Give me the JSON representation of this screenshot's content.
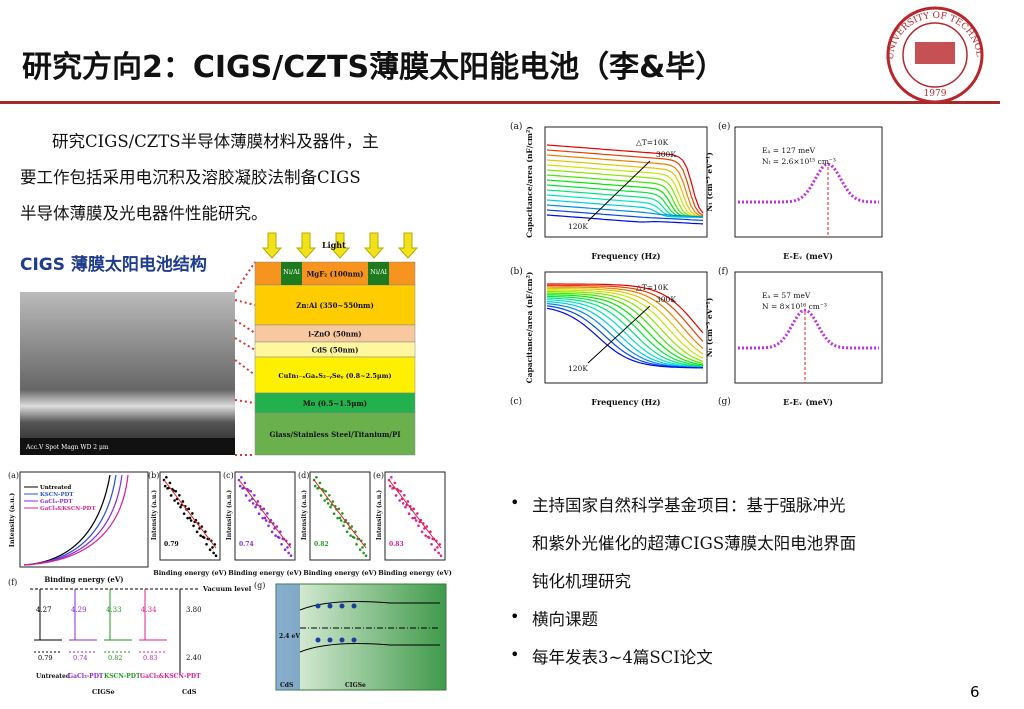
{
  "header": {
    "title": "研究方向2：CIGS/CZTS薄膜太阳能电池（李&毕）",
    "logo_text": "UNIVERSITY OF TECHNOLOGY",
    "logo_year": "1979"
  },
  "intro": {
    "lines": [
      "研究CIGS/CZTS半导体薄膜材料及器件，主",
      "要工作包括采用电沉积及溶胶凝胶法制备CIGS",
      "半导体薄膜及光电器件性能研究。"
    ]
  },
  "structure": {
    "heading": "CIGS 薄膜太阳电池结构",
    "light": "Light",
    "contact": "Ni/Al",
    "layers": [
      "MgF₂ (100nm)",
      "Zn:Al (350~550nm)",
      "i-ZnO (50nm)",
      "CdS (50nm)",
      "CuIn₁₋ₓGaₓS₂₋ᵧSeᵧ (0.8~2.5μm)",
      "Mo (0.5~1.5μm)",
      "Glass/Stainless Steel/Titanium/PI"
    ],
    "sem_caption": "Acc.V  Spot Magn   WD          2 μm"
  },
  "figures": {
    "a": {
      "label": "(a)",
      "x_label": "Frequency (Hz)",
      "y_label": "Capacitance/area (nF/cm²)",
      "dt": "△T=10K",
      "high": "300K",
      "low": "120K"
    },
    "b": {
      "label": "(b)",
      "x_label": "Frequency (Hz)",
      "y_label": "Capacitance/area (nF/cm²)",
      "dt": "△T=10K",
      "high": "300K",
      "low": "120K"
    },
    "c": {
      "label": "(c)"
    },
    "e": {
      "label": "(e)",
      "x_label": "E-Eᵥ (meV)",
      "y_label": "Nₜ (cm⁻³ eV⁻¹)",
      "ea": "Eₐ = 127 meV",
      "nt": "Nₜ = 2.6×10¹⁵ cm⁻³"
    },
    "f": {
      "label": "(f)",
      "x_label": "E-Eᵥ (meV)",
      "y_label": "Nₜ (cm⁻³ eV⁻¹)",
      "ea": "Eₐ = 57 meV",
      "nt": "N = 8×10¹⁶ cm⁻³"
    },
    "g": {
      "label": "(g)"
    }
  },
  "xps": {
    "panels": [
      "(a)",
      "(b)",
      "(c)",
      "(d)",
      "(e)"
    ],
    "legend": [
      "Untreated",
      "KSCN-PDT",
      "GaCl₃-PDT",
      "GaCl₃&KSCN-PDT"
    ],
    "x_label": "Binding energy (eV)",
    "y_label": "Intensity (a.u.)",
    "values": [
      "0.79",
      "0.74",
      "0.82",
      "0.83"
    ],
    "band_label": "(f)",
    "vacuum": "Vacuum level",
    "affinities": [
      "4.27",
      "4.29",
      "4.33",
      "4.34",
      "3.80"
    ],
    "cds_gap": "2.40",
    "cigse": "CIGSe",
    "cds": "CdS",
    "g_label": "(g)",
    "gap": "2.4 eV"
  },
  "bullets": [
    [
      "主持国家自然科学基金项目：基于强脉冲光",
      "和紫外光催化的超薄CIGS薄膜太阳电池界面",
      "钝化机理研究"
    ],
    [
      "横向课题"
    ],
    [
      "每年发表3~4篇SCI论文"
    ]
  ],
  "page_number": "6"
}
